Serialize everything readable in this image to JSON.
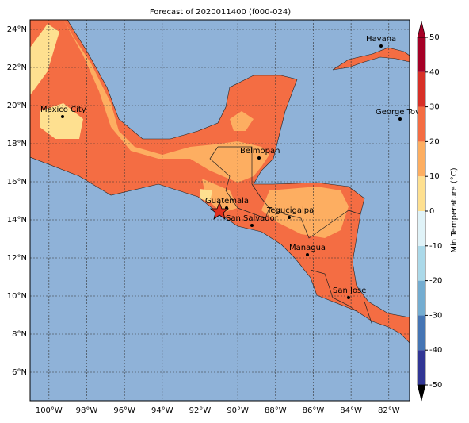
{
  "map": {
    "title": "Forecast of 2020011400 (f000-024)",
    "xticks": [
      {
        "value": -100,
        "label": "100°W"
      },
      {
        "value": -98,
        "label": "98°W"
      },
      {
        "value": -96,
        "label": "96°W"
      },
      {
        "value": -94,
        "label": "94°W"
      },
      {
        "value": -92,
        "label": "92°W"
      },
      {
        "value": -90,
        "label": "90°W"
      },
      {
        "value": -88,
        "label": "88°W"
      },
      {
        "value": -86,
        "label": "86°W"
      },
      {
        "value": -84,
        "label": "84°W"
      },
      {
        "value": -82,
        "label": "82°W"
      }
    ],
    "yticks": [
      {
        "value": 6,
        "label": "6°N"
      },
      {
        "value": 8,
        "label": "8°N"
      },
      {
        "value": 10,
        "label": "10°N"
      },
      {
        "value": 12,
        "label": "12°N"
      },
      {
        "value": 14,
        "label": "14°N"
      },
      {
        "value": 16,
        "label": "16°N"
      },
      {
        "value": 18,
        "label": "18°N"
      },
      {
        "value": 20,
        "label": "20°N"
      },
      {
        "value": 22,
        "label": "22°N"
      },
      {
        "value": 24,
        "label": "24°N"
      }
    ],
    "xlim": [
      -101,
      -80.9
    ],
    "ylim": [
      4.5,
      24.5
    ],
    "grid": true,
    "cities": [
      "Havana",
      "Mexico City",
      "George Tov",
      "Belmopan",
      "Guatemala",
      "Tegucigalpa",
      "San Salvador",
      "Managua",
      "San Jose"
    ],
    "colorbar": {
      "label": "Min Temperature (°C)",
      "ticks": [
        -50,
        -40,
        -30,
        -20,
        -10,
        0,
        10,
        20,
        30,
        40,
        50
      ],
      "colors": [
        "#313695",
        "#4575b4",
        "#74add1",
        "#abd9e9",
        "#e0f3f8",
        "#fee090",
        "#fdae61",
        "#f46d43",
        "#d73027",
        "#a50026"
      ]
    }
  }
}
